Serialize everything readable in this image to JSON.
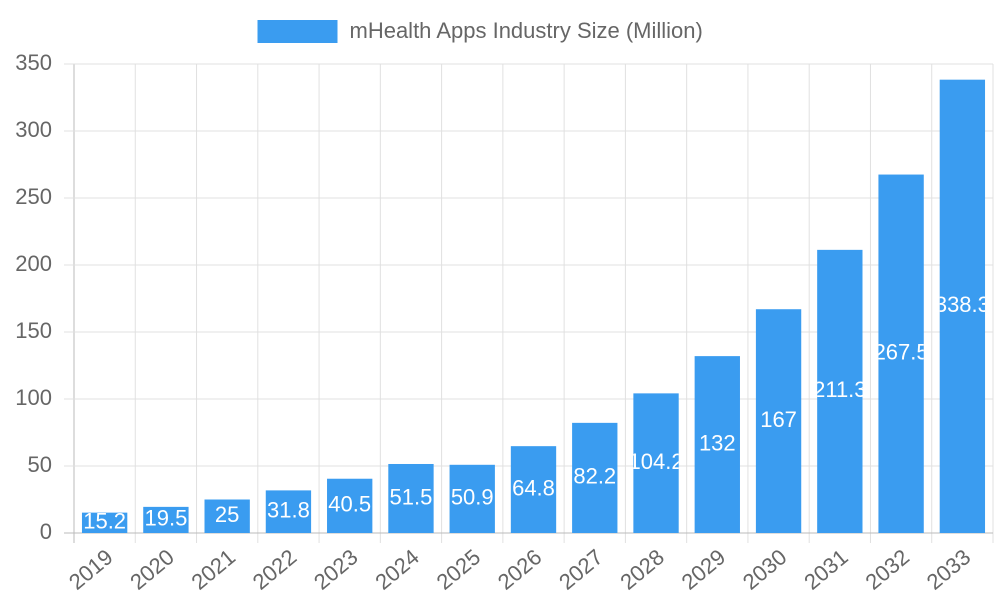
{
  "chart_data": {
    "type": "bar",
    "series": [
      {
        "name": "mHealth Apps Industry Size (Million)",
        "color": "#3a9cf0",
        "values": [
          15.2,
          19.5,
          25,
          31.8,
          40.5,
          51.5,
          50.9,
          64.8,
          82.2,
          104.2,
          132,
          167,
          211.3,
          267.5,
          338.3
        ]
      }
    ],
    "categories": [
      "2019",
      "2020",
      "2021",
      "2022",
      "2023",
      "2024",
      "2025",
      "2026",
      "2027",
      "2028",
      "2029",
      "2030",
      "2031",
      "2032",
      "2033"
    ],
    "ylim": [
      0,
      350
    ],
    "yticks": [
      0,
      50,
      100,
      150,
      200,
      250,
      300,
      350
    ],
    "grid": true,
    "legend": "top"
  }
}
